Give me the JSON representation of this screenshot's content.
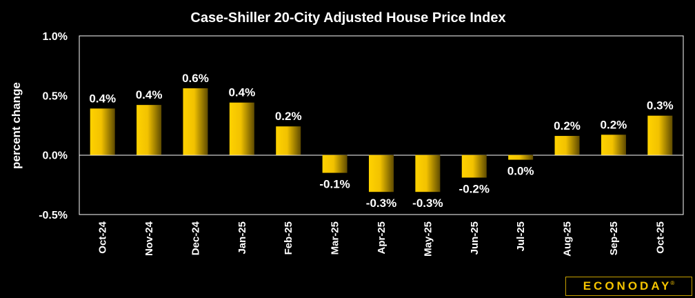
{
  "chart_data": {
    "type": "bar",
    "title": "Case-Shiller 20-City Adjusted House Price Index",
    "xlabel": "",
    "ylabel": "percent change",
    "ylim": [
      -0.5,
      1.0
    ],
    "yticks": [
      "1.0%",
      "0.5%",
      "0.0%",
      "-0.5%"
    ],
    "ytick_values": [
      1.0,
      0.5,
      0.0,
      -0.5
    ],
    "categories": [
      "Oct-24",
      "Nov-24",
      "Dec-24",
      "Jan-25",
      "Feb-25",
      "Mar-25",
      "Apr-25",
      "May-25",
      "Jun-25",
      "Jul-25",
      "Aug-25",
      "Sep-25",
      "Oct-25"
    ],
    "values": [
      0.39,
      0.42,
      0.56,
      0.44,
      0.24,
      -0.15,
      -0.31,
      -0.31,
      -0.19,
      -0.04,
      0.16,
      0.17,
      0.33
    ],
    "data_labels": [
      "0.4%",
      "0.4%",
      "0.6%",
      "0.4%",
      "0.2%",
      "-0.1%",
      "-0.3%",
      "-0.3%",
      "-0.2%",
      "0.0%",
      "0.2%",
      "0.2%",
      "0.3%"
    ],
    "grid": false,
    "legend": "none"
  },
  "colors": {
    "background": "#000000",
    "plot_border": "#ffffff",
    "bar_light": "#ffd200",
    "bar_dark": "#5e4a00",
    "text": "#ffffff",
    "logo": "#f5c400"
  },
  "logo": {
    "text": "ECONODAY",
    "mark": "®"
  }
}
